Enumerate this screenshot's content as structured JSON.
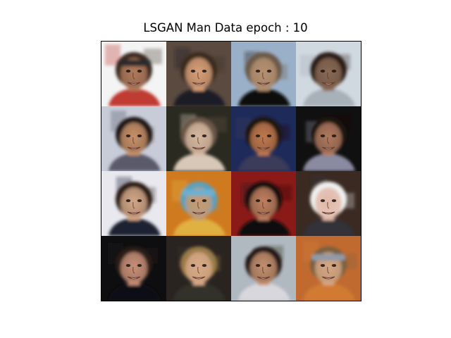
{
  "figure": {
    "title": "LSGAN Man Data epoch : 10"
  },
  "samples": [
    {
      "bg": "#f4f4f4",
      "skin": "#b07a5c",
      "hair": "#3a2a22",
      "shirt": "#c03a30",
      "band": "#2a2a2a"
    },
    {
      "bg": "#5a4a40",
      "skin": "#d8a079",
      "hair": "#3b2a1f",
      "shirt": "#1e1e28",
      "band": null
    },
    {
      "bg": "#9ab0c8",
      "skin": "#b59070",
      "hair": "#6a5a48",
      "shirt": "#101010",
      "band": null
    },
    {
      "bg": "#d0d8e0",
      "skin": "#8a6a55",
      "hair": "#2a1d16",
      "shirt": "#a8b0b8",
      "band": null
    },
    {
      "bg": "#c8ccd8",
      "skin": "#c8926a",
      "hair": "#1e1612",
      "shirt": "#5a5a6a",
      "band": null
    },
    {
      "bg": "#2a2a20",
      "skin": "#d6b8a0",
      "hair": "#6a5646",
      "shirt": "#d8c8b8",
      "band": null
    },
    {
      "bg": "#1e2a5a",
      "skin": "#c07a50",
      "hair": "#1a120c",
      "shirt": "#3a3a5a",
      "band": null
    },
    {
      "bg": "#101010",
      "skin": "#b07a60",
      "hair": "#1a120e",
      "shirt": "#8a8aa0",
      "band": null
    },
    {
      "bg": "#e8e8ee",
      "skin": "#d4a888",
      "hair": "#2a1e18",
      "shirt": "#1e2230",
      "band": null
    },
    {
      "bg": "#d07a20",
      "skin": "#c89a70",
      "hair": "#5aa0c0",
      "shirt": "#e0b040",
      "band": "#6ab0d0"
    },
    {
      "bg": "#8a1a18",
      "skin": "#c08060",
      "hair": "#181010",
      "shirt": "#101010",
      "band": null
    },
    {
      "bg": "#3a2a22",
      "skin": "#e0b8a8",
      "hair": "#f0f0f0",
      "shirt": "#303038",
      "band": null
    },
    {
      "bg": "#0e0e10",
      "skin": "#c89078",
      "hair": "#2a1e18",
      "shirt": "#101018",
      "band": null
    },
    {
      "bg": "#2a2420",
      "skin": "#d8aa88",
      "hair": "#9a7a4a",
      "shirt": "#30302a",
      "band": null
    },
    {
      "bg": "#b0b8c0",
      "skin": "#c49070",
      "hair": "#201812",
      "shirt": "#d8d8dc",
      "band": null
    },
    {
      "bg": "#c06a30",
      "skin": "#d6a884",
      "hair": "#7a6040",
      "shirt": "#d07a30",
      "band": "#909aa8"
    }
  ]
}
